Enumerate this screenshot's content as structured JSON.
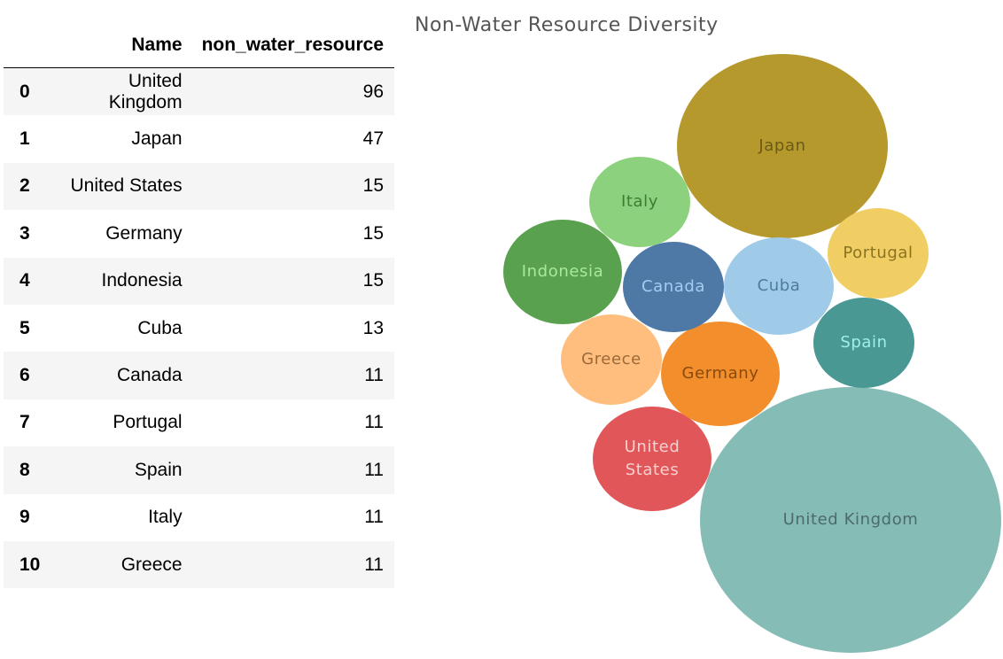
{
  "table": {
    "columns": [
      "",
      "Name",
      "non_water_resource"
    ],
    "rows": [
      {
        "index": "0",
        "name": "United Kingdom",
        "value": "96"
      },
      {
        "index": "1",
        "name": "Japan",
        "value": "47"
      },
      {
        "index": "2",
        "name": "United States",
        "value": "15"
      },
      {
        "index": "3",
        "name": "Germany",
        "value": "15"
      },
      {
        "index": "4",
        "name": "Indonesia",
        "value": "15"
      },
      {
        "index": "5",
        "name": "Cuba",
        "value": "13"
      },
      {
        "index": "6",
        "name": "Canada",
        "value": "11"
      },
      {
        "index": "7",
        "name": "Portugal",
        "value": "11"
      },
      {
        "index": "8",
        "name": "Spain",
        "value": "11"
      },
      {
        "index": "9",
        "name": "Italy",
        "value": "11"
      },
      {
        "index": "10",
        "name": "Greece",
        "value": "11"
      }
    ]
  },
  "chart_data": {
    "type": "bubble",
    "title": "Non-Water Resource Diversity",
    "bubbles": [
      {
        "label": "United Kingdom",
        "value": 96,
        "color": "#86bcb6",
        "text_color": "#4d6b68"
      },
      {
        "label": "Japan",
        "value": 47,
        "color": "#b6992d",
        "text_color": "#6b5a14"
      },
      {
        "label": "United States",
        "value": 15,
        "color": "#e15759",
        "text_color": "#f7d0d0"
      },
      {
        "label": "Germany",
        "value": 15,
        "color": "#f28e2b",
        "text_color": "#8a4a0c"
      },
      {
        "label": "Indonesia",
        "value": 15,
        "color": "#59a14f",
        "text_color": "#a9e89d"
      },
      {
        "label": "Cuba",
        "value": 13,
        "color": "#a0cbe8",
        "text_color": "#4f7c99"
      },
      {
        "label": "Canada",
        "value": 11,
        "color": "#4e79a7",
        "text_color": "#a7cbf0"
      },
      {
        "label": "Portugal",
        "value": 11,
        "color": "#f1ce63",
        "text_color": "#8a7320"
      },
      {
        "label": "Spain",
        "value": 11,
        "color": "#499894",
        "text_color": "#9ef0ea"
      },
      {
        "label": "Italy",
        "value": 11,
        "color": "#8cd17d",
        "text_color": "#3f7c33"
      },
      {
        "label": "Greece",
        "value": 11,
        "color": "#ffbe7d",
        "text_color": "#9a6a3a"
      }
    ]
  }
}
